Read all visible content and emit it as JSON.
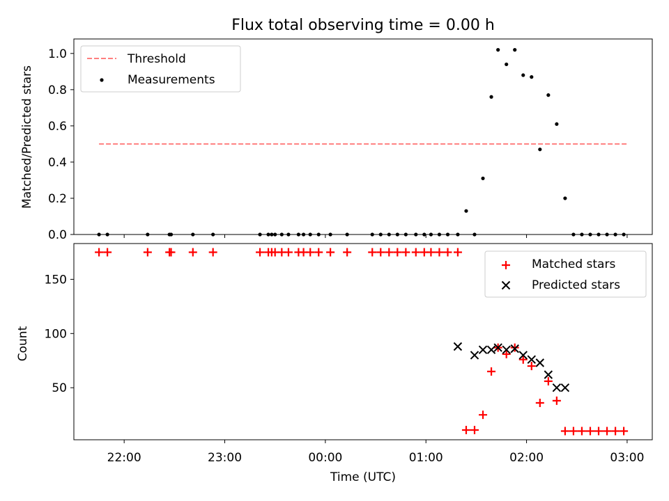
{
  "chart_data": {
    "title": "Flux total observing time = 0.00 h",
    "xlabel": "Time (UTC)",
    "xlim": [
      "21:30",
      "03:15"
    ],
    "xticks": [
      "22:00",
      "23:00",
      "00:00",
      "01:00",
      "02:00",
      "03:00"
    ],
    "grid": false,
    "panels": [
      {
        "type": "scatter",
        "ylabel": "Matched/Predicted stars",
        "ylim": [
          0,
          1.08
        ],
        "yticks": [
          "0.0",
          "0.2",
          "0.4",
          "0.6",
          "0.8",
          "1.0"
        ],
        "legend_position": "upper left",
        "threshold": {
          "label": "Threshold",
          "y": 0.5,
          "x_start": "21:45",
          "x_end": "03:00",
          "color": "#ff7f7f"
        },
        "series": [
          {
            "name": "Measurements",
            "marker": "dot",
            "color": "#000000",
            "x": [
              "21:45",
              "21:50",
              "22:14",
              "22:27",
              "22:28",
              "22:41",
              "22:53",
              "23:21",
              "23:26",
              "23:28",
              "23:30",
              "23:34",
              "23:38",
              "23:44",
              "23:47",
              "23:51",
              "23:56",
              "24:03",
              "24:13",
              "24:28",
              "24:33",
              "24:38",
              "24:43",
              "24:48",
              "24:54",
              "24:59",
              "25:03",
              "25:08",
              "25:13",
              "25:19",
              "25:24",
              "25:29",
              "25:34",
              "25:39",
              "25:43",
              "25:48",
              "25:53",
              "25:58",
              "26:03",
              "26:08",
              "26:13",
              "26:18",
              "26:23",
              "26:28",
              "26:33",
              "26:38",
              "26:43",
              "26:48",
              "26:53",
              "26:58"
            ],
            "y": [
              0,
              0,
              0,
              0,
              0,
              0,
              0,
              0,
              0,
              0,
              0,
              0,
              0,
              0,
              0,
              0,
              0,
              0,
              0,
              0,
              0,
              0,
              0,
              0,
              0,
              0,
              0,
              0,
              0,
              0,
              0.13,
              0,
              0.31,
              0.76,
              1.02,
              0.94,
              1.02,
              0.88,
              0.87,
              0.47,
              0.77,
              0.61,
              0.2,
              0,
              0,
              0,
              0,
              0,
              0,
              0
            ]
          }
        ]
      },
      {
        "type": "scatter",
        "ylabel": "Count",
        "ylim": [
          2,
          183
        ],
        "yticks": [
          "50",
          "100",
          "150"
        ],
        "legend_position": "upper right",
        "series": [
          {
            "name": "Matched stars",
            "marker": "plus",
            "color": "#ff0000",
            "x": [
              "21:45",
              "21:50",
              "22:14",
              "22:27",
              "22:28",
              "22:41",
              "22:53",
              "23:21",
              "23:26",
              "23:28",
              "23:30",
              "23:34",
              "23:38",
              "23:44",
              "23:47",
              "23:51",
              "23:56",
              "24:03",
              "24:13",
              "24:28",
              "24:33",
              "24:38",
              "24:43",
              "24:48",
              "24:54",
              "24:59",
              "25:03",
              "25:08",
              "25:13",
              "25:19",
              "25:24",
              "25:29",
              "25:34",
              "25:39",
              "25:43",
              "25:48",
              "25:53",
              "25:58",
              "26:03",
              "26:08",
              "26:13",
              "26:18",
              "26:23",
              "26:28",
              "26:33",
              "26:38",
              "26:43",
              "26:48",
              "26:53",
              "26:58"
            ],
            "y": [
              175,
              175,
              175,
              175,
              175,
              175,
              175,
              175,
              175,
              175,
              175,
              175,
              175,
              175,
              175,
              175,
              175,
              175,
              175,
              175,
              175,
              175,
              175,
              175,
              175,
              175,
              175,
              175,
              175,
              175,
              11,
              11,
              25,
              65,
              87,
              81,
              87,
              76,
              70,
              36,
              56,
              38,
              10,
              10,
              10,
              10,
              10,
              10,
              10,
              10
            ]
          },
          {
            "name": "Predicted stars",
            "marker": "x",
            "color": "#000000",
            "x": [
              "25:19",
              "25:29",
              "25:34",
              "25:39",
              "25:43",
              "25:48",
              "25:53",
              "25:58",
              "26:03",
              "26:08",
              "26:13",
              "26:18",
              "26:23"
            ],
            "y": [
              88,
              80,
              85,
              85,
              87,
              85,
              86,
              80,
              76,
              73,
              62,
              50,
              50
            ]
          }
        ]
      }
    ]
  }
}
